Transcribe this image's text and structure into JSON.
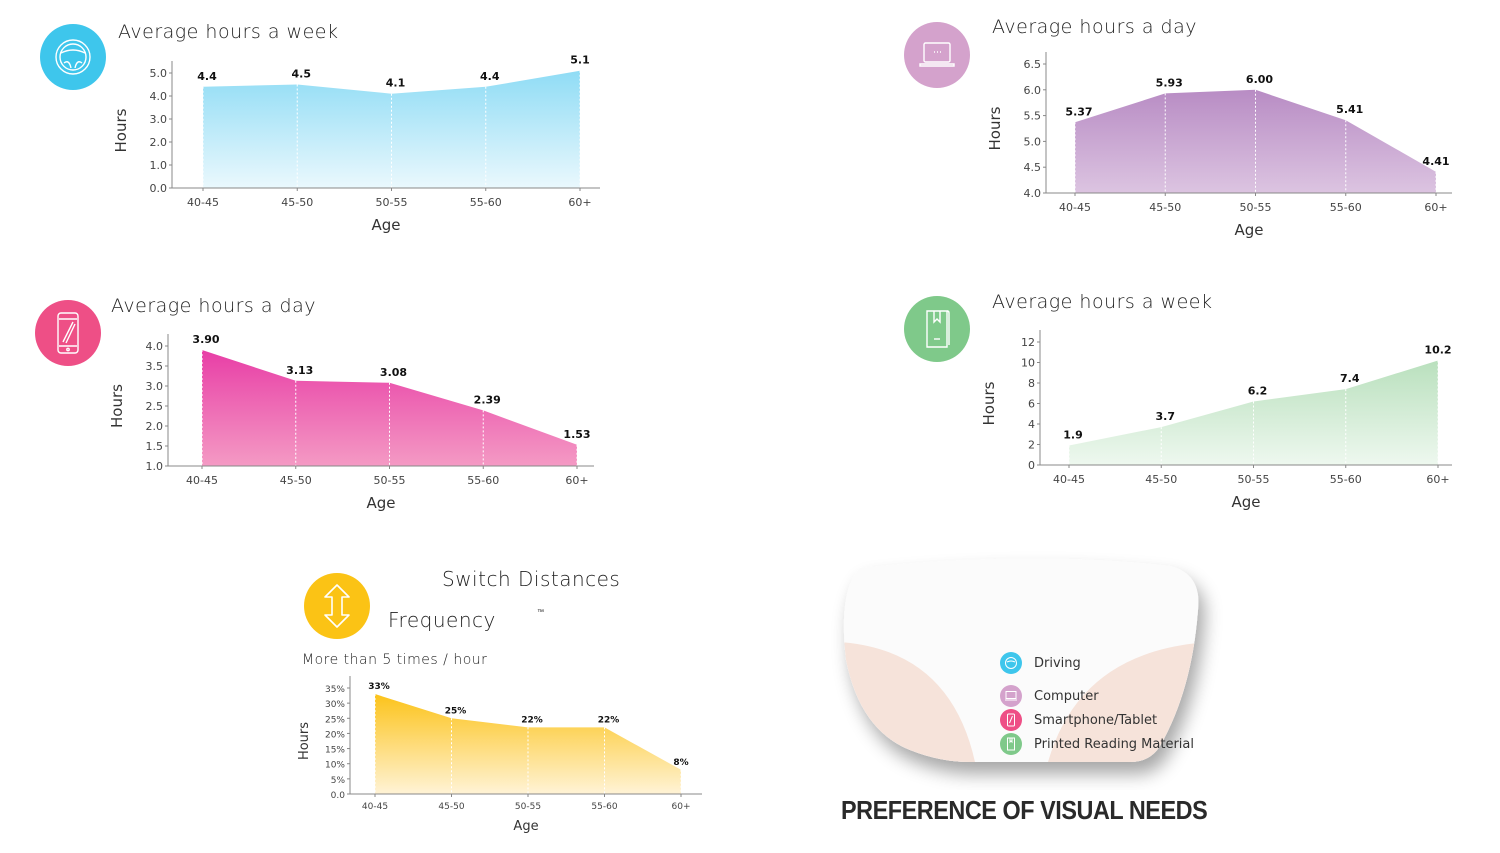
{
  "charts": [
    {
      "id": "driving",
      "title": "Average hours a week",
      "icon": "steering-wheel-icon",
      "color": "#3ec6ec",
      "fill_top": "#8fdcf5",
      "fill_bottom": "#eaf8fd"
    },
    {
      "id": "computer",
      "title": "Average hours a day",
      "icon": "laptop-icon",
      "color": "#d4a2cc",
      "fill_top": "#b88cc4",
      "fill_bottom": "#dcc4e1"
    },
    {
      "id": "smartphone",
      "title": "Average hours a day",
      "icon": "smartphone-icon",
      "color": "#ee4f86",
      "fill_top": "#e83ea6",
      "fill_bottom": "#f49ac4"
    },
    {
      "id": "reading",
      "title": "Average hours a week",
      "icon": "book-icon",
      "color": "#7fc98a",
      "fill_top": "#b9e0bd",
      "fill_bottom": "#eef8ef"
    },
    {
      "id": "switch",
      "title": "Switch Distances",
      "subtitle": "Frequency",
      "trademark": "™",
      "caption": "More than 5 times / hour",
      "icon": "vertical-arrows-icon",
      "color": "#fbc315",
      "fill_top": "#fcc31a",
      "fill_bottom": "#fff3d6"
    }
  ],
  "axis": {
    "xlabel": "Age",
    "ylabel": "Hours"
  },
  "legend": {
    "title": "PREFERENCE OF VISUAL NEEDS",
    "items": [
      {
        "label": "Driving",
        "color": "#3ec6ec",
        "icon": "steering-wheel-icon"
      },
      {
        "label": "Computer",
        "color": "#d4a2cc",
        "icon": "laptop-icon"
      },
      {
        "label": "Smartphone/Tablet",
        "color": "#ee4f86",
        "icon": "smartphone-icon"
      },
      {
        "label": "Printed Reading Material",
        "color": "#7fc98a",
        "icon": "book-icon"
      }
    ]
  },
  "chart_data": [
    {
      "type": "area",
      "title": "Average hours a week",
      "subject": "Driving",
      "categories": [
        "40-45",
        "45-50",
        "50-55",
        "55-60",
        "60+"
      ],
      "values": [
        4.4,
        4.5,
        4.1,
        4.4,
        5.1
      ],
      "labels": [
        "4.4",
        "4.5",
        "4.1",
        "4.4",
        "5.1"
      ],
      "xlabel": "Age",
      "ylabel": "Hours",
      "ylim": [
        0,
        5.0
      ],
      "yticks": [
        "0.0",
        "1.0",
        "2.0",
        "3.0",
        "4.0",
        "5.0"
      ]
    },
    {
      "type": "area",
      "title": "Average hours a day",
      "subject": "Computer",
      "categories": [
        "40-45",
        "45-50",
        "50-55",
        "55-60",
        "60+"
      ],
      "values": [
        5.37,
        5.93,
        6.0,
        5.41,
        4.41
      ],
      "labels": [
        "5.37",
        "5.93",
        "6.00",
        "5.41",
        "4.41"
      ],
      "xlabel": "Age",
      "ylabel": "Hours",
      "ylim": [
        4.0,
        6.5
      ],
      "yticks": [
        "4.0",
        "4.5",
        "5.0",
        "5.5",
        "6.0",
        "6.5"
      ]
    },
    {
      "type": "area",
      "title": "Average hours a day",
      "subject": "Smartphone/Tablet",
      "categories": [
        "40-45",
        "45-50",
        "50-55",
        "55-60",
        "60+"
      ],
      "values": [
        3.9,
        3.13,
        3.08,
        2.39,
        1.53
      ],
      "labels": [
        "3.90",
        "3.13",
        "3.08",
        "2.39",
        "1.53"
      ],
      "xlabel": "Age",
      "ylabel": "Hours",
      "ylim": [
        1.0,
        4.0
      ],
      "yticks": [
        "1.0",
        "1.5",
        "2.0",
        "2.5",
        "3.0",
        "3.5",
        "4.0"
      ]
    },
    {
      "type": "area",
      "title": "Average hours a week",
      "subject": "Printed Reading Material",
      "categories": [
        "40-45",
        "45-50",
        "50-55",
        "55-60",
        "60+"
      ],
      "values": [
        1.9,
        3.7,
        6.2,
        7.4,
        10.2
      ],
      "labels": [
        "1.9",
        "3.7",
        "6.2",
        "7.4",
        "10.2"
      ],
      "xlabel": "Age",
      "ylabel": "Hours",
      "ylim": [
        0,
        12
      ],
      "yticks": [
        "0",
        "2",
        "4",
        "6",
        "8",
        "10",
        "12"
      ]
    },
    {
      "type": "area",
      "title": "Switch Distances Frequency - More than 5 times / hour",
      "subject": "Switch Distances",
      "categories": [
        "40-45",
        "45-50",
        "50-55",
        "55-60",
        "60+"
      ],
      "values": [
        33,
        25,
        22,
        22,
        8
      ],
      "labels": [
        "33%",
        "25%",
        "22%",
        "22%",
        "8%"
      ],
      "xlabel": "Age",
      "ylabel": "Hours",
      "ylim": [
        0,
        35
      ],
      "yticks": [
        "0.0",
        "5%",
        "10%",
        "15%",
        "20%",
        "25%",
        "30%",
        "35%"
      ]
    }
  ]
}
